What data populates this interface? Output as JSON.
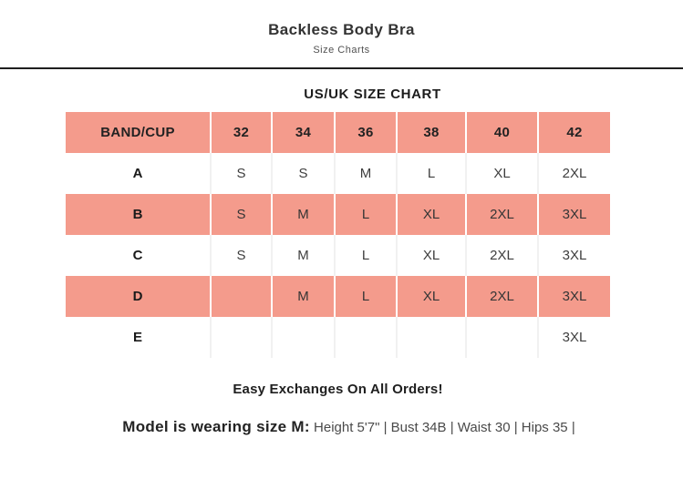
{
  "header": {
    "title": "Backless Body Bra",
    "subtitle": "Size Charts"
  },
  "chart_data": {
    "type": "table",
    "title": "US/UK SIZE CHART",
    "columns": [
      "BAND/CUP",
      "32",
      "34",
      "36",
      "38",
      "40",
      "42"
    ],
    "rows": [
      {
        "label": "A",
        "tinted": false,
        "values": [
          "S",
          "S",
          "M",
          "L",
          "XL",
          "2XL"
        ]
      },
      {
        "label": "B",
        "tinted": true,
        "values": [
          "S",
          "M",
          "L",
          "XL",
          "2XL",
          "3XL"
        ]
      },
      {
        "label": "C",
        "tinted": false,
        "values": [
          "S",
          "M",
          "L",
          "XL",
          "2XL",
          "3XL"
        ]
      },
      {
        "label": "D",
        "tinted": true,
        "values": [
          "",
          "M",
          "L",
          "XL",
          "2XL",
          "3XL"
        ]
      },
      {
        "label": "E",
        "tinted": false,
        "values": [
          "",
          "",
          "",
          "",
          "",
          "3XL"
        ]
      }
    ]
  },
  "footer": {
    "exchange_note": "Easy Exchanges On All Orders!",
    "model_label": "Model is wearing size M:",
    "model_details": "Height 5'7\" | Bust 34B | Waist 30 | Hips 35 |"
  },
  "colors": {
    "accent": "#f49b8c",
    "divider": "#1f1f1f"
  }
}
